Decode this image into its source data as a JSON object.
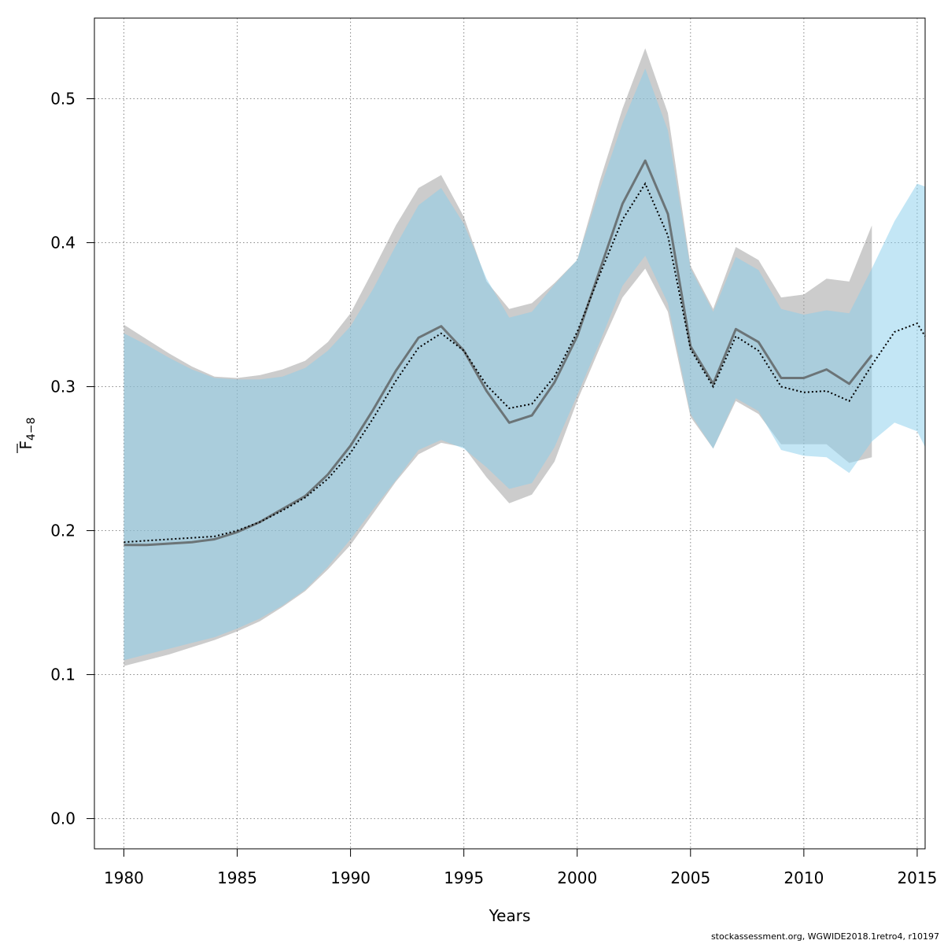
{
  "chart_data": {
    "type": "line",
    "xlabel": "Years",
    "ylabel": "F",
    "ylabel_sub": "4−8",
    "xlim": [
      1978.7,
      2015.35
    ],
    "ylim": [
      -0.021,
      0.556
    ],
    "x_ticks": [
      1980,
      1985,
      1990,
      1995,
      2000,
      2005,
      2010,
      2015
    ],
    "y_ticks": [
      0.0,
      0.1,
      0.2,
      0.3,
      0.4,
      0.5
    ],
    "y_tick_labels": [
      "0.0",
      "0.1",
      "0.2",
      "0.3",
      "0.4",
      "0.5"
    ],
    "grid": true,
    "series": [
      {
        "style": "solid-dark",
        "band_color": "#9a9a9a",
        "line_color": "#555555",
        "x": [
          1980,
          1981,
          1982,
          1983,
          1984,
          1985,
          1986,
          1987,
          1988,
          1989,
          1990,
          1991,
          1992,
          1993,
          1994,
          1995,
          1996,
          1997,
          1998,
          1999,
          2000,
          2001,
          2002,
          2003,
          2004,
          2005,
          2006,
          2007,
          2008,
          2009,
          2010,
          2011,
          2012,
          2013
        ],
        "values": [
          0.19,
          0.19,
          0.191,
          0.192,
          0.194,
          0.199,
          0.206,
          0.215,
          0.224,
          0.239,
          0.259,
          0.284,
          0.311,
          0.334,
          0.342,
          0.325,
          0.297,
          0.275,
          0.28,
          0.303,
          0.335,
          0.381,
          0.427,
          0.457,
          0.42,
          0.328,
          0.302,
          0.34,
          0.331,
          0.306,
          0.306,
          0.312,
          0.302,
          0.322
        ],
        "upper": [
          0.343,
          0.333,
          0.323,
          0.314,
          0.307,
          0.306,
          0.308,
          0.312,
          0.318,
          0.331,
          0.351,
          0.381,
          0.412,
          0.438,
          0.447,
          0.418,
          0.373,
          0.354,
          0.358,
          0.372,
          0.388,
          0.443,
          0.493,
          0.535,
          0.49,
          0.384,
          0.354,
          0.397,
          0.388,
          0.362,
          0.364,
          0.375,
          0.373,
          0.412
        ],
        "lower": [
          0.106,
          0.11,
          0.114,
          0.119,
          0.124,
          0.13,
          0.137,
          0.147,
          0.158,
          0.173,
          0.19,
          0.212,
          0.234,
          0.253,
          0.261,
          0.258,
          0.237,
          0.219,
          0.225,
          0.248,
          0.29,
          0.327,
          0.362,
          0.382,
          0.352,
          0.279,
          0.257,
          0.29,
          0.281,
          0.26,
          0.26,
          0.26,
          0.247,
          0.251
        ]
      },
      {
        "style": "dotted",
        "band_color": "#87ceeb",
        "line_color": "#000000",
        "x": [
          1980,
          1981,
          1982,
          1983,
          1984,
          1985,
          1986,
          1987,
          1988,
          1989,
          1990,
          1991,
          1992,
          1993,
          1994,
          1995,
          1996,
          1997,
          1998,
          1999,
          2000,
          2001,
          2002,
          2003,
          2004,
          2005,
          2006,
          2007,
          2008,
          2009,
          2010,
          2011,
          2012,
          2013,
          2014,
          2015,
          2015.35
        ],
        "values": [
          0.192,
          0.193,
          0.194,
          0.195,
          0.196,
          0.2,
          0.206,
          0.214,
          0.223,
          0.236,
          0.254,
          0.278,
          0.304,
          0.327,
          0.337,
          0.325,
          0.301,
          0.285,
          0.288,
          0.307,
          0.338,
          0.378,
          0.416,
          0.441,
          0.405,
          0.326,
          0.3,
          0.335,
          0.325,
          0.3,
          0.296,
          0.297,
          0.29,
          0.315,
          0.338,
          0.344,
          0.335
        ],
        "upper": [
          0.337,
          0.329,
          0.32,
          0.312,
          0.306,
          0.305,
          0.305,
          0.307,
          0.313,
          0.325,
          0.342,
          0.368,
          0.398,
          0.426,
          0.438,
          0.413,
          0.375,
          0.348,
          0.352,
          0.371,
          0.388,
          0.437,
          0.483,
          0.521,
          0.478,
          0.382,
          0.352,
          0.39,
          0.381,
          0.354,
          0.35,
          0.353,
          0.351,
          0.382,
          0.415,
          0.441,
          0.439
        ],
        "lower": [
          0.11,
          0.114,
          0.118,
          0.122,
          0.126,
          0.132,
          0.139,
          0.148,
          0.159,
          0.175,
          0.194,
          0.215,
          0.235,
          0.256,
          0.263,
          0.257,
          0.244,
          0.229,
          0.233,
          0.258,
          0.294,
          0.331,
          0.37,
          0.391,
          0.358,
          0.281,
          0.257,
          0.292,
          0.283,
          0.256,
          0.252,
          0.251,
          0.24,
          0.262,
          0.275,
          0.269,
          0.258
        ]
      }
    ]
  },
  "footer_text": "stockassessment.org, WGWIDE2018.1retro4, r10197"
}
